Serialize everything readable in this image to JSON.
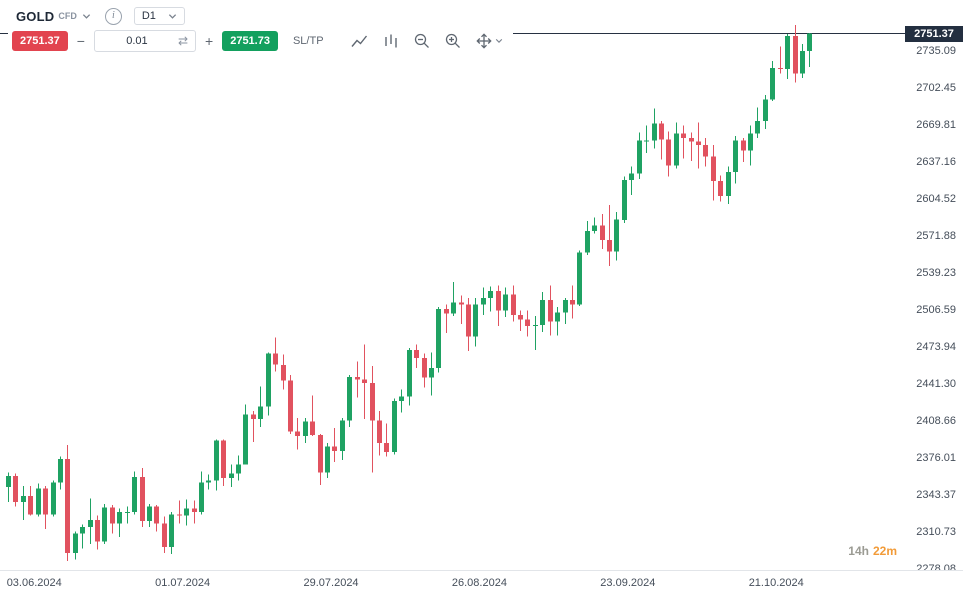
{
  "header": {
    "symbol": "GOLD",
    "instrument_type": "CFD",
    "timeframe": "D1"
  },
  "toolbar": {
    "sell_price": "2751.37",
    "buy_price": "2751.73",
    "volume": "0.01",
    "minus": "−",
    "plus": "+",
    "refresh_glyph": "⇄",
    "sltp_label": "SL/TP"
  },
  "session_countdown": {
    "hours": "14h",
    "minutes": "22m"
  },
  "chart_data": {
    "type": "candlestick",
    "title": "GOLD CFD D1 daily candlestick chart",
    "current_price": 2751.37,
    "current_price_label": "2751.37",
    "up_color": "#1fa263",
    "down_color": "#e1525f",
    "current_price_line_color": "#273142",
    "ylim": [
      2278.08,
      2760
    ],
    "y_axis_labels": [
      "2735.09",
      "2702.45",
      "2669.81",
      "2637.16",
      "2604.52",
      "2571.88",
      "2539.23",
      "2506.59",
      "2473.94",
      "2441.30",
      "2408.66",
      "2376.01",
      "2343.37",
      "2310.73",
      "2278.08"
    ],
    "x_axis_labels": [
      "03.06.2024",
      "01.07.2024",
      "29.07.2024",
      "26.08.2024",
      "23.09.2024",
      "21.10.2024"
    ],
    "x_axis_label_candle_indices": [
      4,
      24,
      44,
      64,
      84,
      104
    ],
    "candles_ohlc": [
      [
        2351,
        2364,
        2338,
        2361
      ],
      [
        2361,
        2363,
        2334,
        2338
      ],
      [
        2338,
        2352,
        2322,
        2343
      ],
      [
        2343,
        2352,
        2326,
        2327
      ],
      [
        2327,
        2354,
        2325,
        2350
      ],
      [
        2350,
        2352,
        2314,
        2327
      ],
      [
        2327,
        2357,
        2325,
        2355
      ],
      [
        2355,
        2378,
        2349,
        2376
      ],
      [
        2376,
        2388,
        2286,
        2293
      ],
      [
        2293,
        2312,
        2287,
        2310
      ],
      [
        2310,
        2318,
        2297,
        2316
      ],
      [
        2316,
        2341,
        2301,
        2322
      ],
      [
        2322,
        2326,
        2296,
        2303
      ],
      [
        2303,
        2336,
        2301,
        2333
      ],
      [
        2333,
        2335,
        2310,
        2319
      ],
      [
        2319,
        2332,
        2307,
        2329
      ],
      [
        2329,
        2334,
        2319,
        2329
      ],
      [
        2329,
        2365,
        2327,
        2360
      ],
      [
        2360,
        2368,
        2316,
        2321
      ],
      [
        2321,
        2336,
        2316,
        2334
      ],
      [
        2334,
        2335,
        2312,
        2319
      ],
      [
        2319,
        2325,
        2293,
        2298
      ],
      [
        2298,
        2329,
        2292,
        2327
      ],
      [
        2327,
        2339,
        2319,
        2326
      ],
      [
        2326,
        2340,
        2317,
        2332
      ],
      [
        2332,
        2339,
        2319,
        2329
      ],
      [
        2329,
        2365,
        2327,
        2355
      ],
      [
        2355,
        2362,
        2349,
        2357
      ],
      [
        2357,
        2393,
        2348,
        2392
      ],
      [
        2392,
        2393,
        2352,
        2359
      ],
      [
        2359,
        2371,
        2351,
        2363
      ],
      [
        2363,
        2379,
        2357,
        2371
      ],
      [
        2371,
        2424,
        2371,
        2415
      ],
      [
        2415,
        2418,
        2391,
        2411
      ],
      [
        2411,
        2440,
        2404,
        2422
      ],
      [
        2422,
        2470,
        2414,
        2469
      ],
      [
        2469,
        2483,
        2453,
        2459
      ],
      [
        2459,
        2468,
        2437,
        2445
      ],
      [
        2445,
        2450,
        2398,
        2400
      ],
      [
        2400,
        2412,
        2384,
        2396
      ],
      [
        2396,
        2412,
        2390,
        2409
      ],
      [
        2409,
        2432,
        2396,
        2397
      ],
      [
        2397,
        2398,
        2353,
        2364
      ],
      [
        2364,
        2390,
        2359,
        2387
      ],
      [
        2387,
        2403,
        2373,
        2383
      ],
      [
        2383,
        2412,
        2375,
        2410
      ],
      [
        2410,
        2450,
        2404,
        2448
      ],
      [
        2448,
        2462,
        2430,
        2446
      ],
      [
        2446,
        2477,
        2411,
        2443
      ],
      [
        2443,
        2458,
        2364,
        2410
      ],
      [
        2410,
        2418,
        2379,
        2390
      ],
      [
        2390,
        2407,
        2378,
        2382
      ],
      [
        2382,
        2429,
        2380,
        2427
      ],
      [
        2427,
        2437,
        2417,
        2431
      ],
      [
        2431,
        2474,
        2423,
        2472
      ],
      [
        2472,
        2477,
        2456,
        2465
      ],
      [
        2465,
        2469,
        2439,
        2448
      ],
      [
        2448,
        2470,
        2432,
        2456
      ],
      [
        2456,
        2510,
        2452,
        2508
      ],
      [
        2508,
        2512,
        2487,
        2504
      ],
      [
        2504,
        2532,
        2502,
        2514
      ],
      [
        2514,
        2520,
        2495,
        2512
      ],
      [
        2512,
        2518,
        2471,
        2484
      ],
      [
        2484,
        2518,
        2475,
        2512
      ],
      [
        2512,
        2527,
        2503,
        2518
      ],
      [
        2518,
        2528,
        2506,
        2524
      ],
      [
        2524,
        2529,
        2493,
        2507
      ],
      [
        2507,
        2527,
        2501,
        2521
      ],
      [
        2521,
        2529,
        2497,
        2503
      ],
      [
        2503,
        2507,
        2489,
        2499
      ],
      [
        2499,
        2507,
        2484,
        2493
      ],
      [
        2493,
        2502,
        2472,
        2494
      ],
      [
        2494,
        2523,
        2488,
        2516
      ],
      [
        2516,
        2529,
        2485,
        2497
      ],
      [
        2497,
        2510,
        2485,
        2505
      ],
      [
        2505,
        2518,
        2495,
        2516
      ],
      [
        2516,
        2529,
        2500,
        2512
      ],
      [
        2512,
        2560,
        2511,
        2558
      ],
      [
        2558,
        2586,
        2556,
        2577
      ],
      [
        2577,
        2589,
        2575,
        2582
      ],
      [
        2582,
        2592,
        2561,
        2569
      ],
      [
        2569,
        2600,
        2546,
        2559
      ],
      [
        2559,
        2594,
        2551,
        2587
      ],
      [
        2587,
        2625,
        2584,
        2622
      ],
      [
        2622,
        2634,
        2609,
        2628
      ],
      [
        2628,
        2664,
        2623,
        2657
      ],
      [
        2657,
        2670,
        2646,
        2657
      ],
      [
        2657,
        2685,
        2650,
        2672
      ],
      [
        2672,
        2674,
        2640,
        2658
      ],
      [
        2658,
        2665,
        2625,
        2635
      ],
      [
        2635,
        2673,
        2632,
        2663
      ],
      [
        2663,
        2670,
        2641,
        2659
      ],
      [
        2659,
        2664,
        2639,
        2656
      ],
      [
        2656,
        2673,
        2632,
        2653
      ],
      [
        2653,
        2659,
        2634,
        2643
      ],
      [
        2643,
        2653,
        2604,
        2621
      ],
      [
        2621,
        2626,
        2603,
        2608
      ],
      [
        2608,
        2634,
        2601,
        2629
      ],
      [
        2629,
        2661,
        2619,
        2657
      ],
      [
        2657,
        2659,
        2638,
        2648
      ],
      [
        2648,
        2670,
        2635,
        2663
      ],
      [
        2663,
        2686,
        2659,
        2674
      ],
      [
        2674,
        2697,
        2667,
        2693
      ],
      [
        2693,
        2727,
        2692,
        2721
      ],
      [
        2721,
        2740,
        2716,
        2720
      ],
      [
        2720,
        2751,
        2711,
        2749
      ],
      [
        2749,
        2759,
        2708,
        2716
      ],
      [
        2716,
        2742,
        2712,
        2736
      ],
      [
        2736,
        2752,
        2722,
        2751.37
      ]
    ]
  }
}
